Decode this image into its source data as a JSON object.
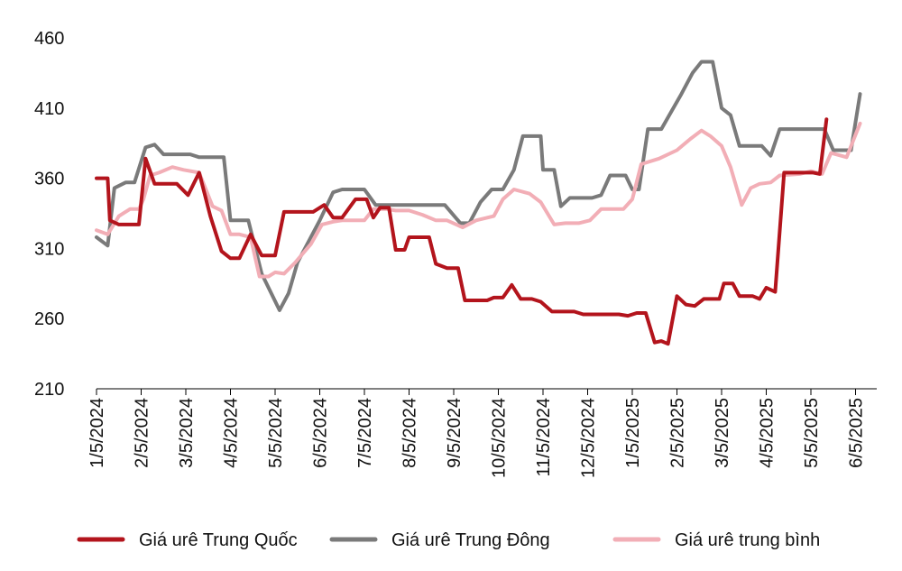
{
  "chart_data": {
    "type": "line",
    "title": "",
    "xlabel": "",
    "ylabel": "",
    "ylim": [
      210,
      460
    ],
    "y_ticks": [
      210,
      260,
      310,
      360,
      410,
      460
    ],
    "x_tick_labels": [
      "1/5/2024",
      "2/5/2024",
      "3/5/2024",
      "4/5/2024",
      "5/5/2024",
      "6/5/2024",
      "7/5/2024",
      "8/5/2024",
      "9/5/2024",
      "10/5/2024",
      "11/5/2024",
      "12/5/2024",
      "1/5/2025",
      "2/5/2025",
      "3/5/2025",
      "4/5/2025",
      "5/5/2025",
      "6/5/2025"
    ],
    "grid": false,
    "legend_position": "bottom",
    "series": [
      {
        "name": "Giá urê Trung Quốc",
        "color": "#b3141c",
        "points": [
          [
            0,
            360
          ],
          [
            0.25,
            360
          ],
          [
            0.3,
            330
          ],
          [
            0.5,
            327
          ],
          [
            0.95,
            327
          ],
          [
            1.1,
            374
          ],
          [
            1.3,
            356
          ],
          [
            1.8,
            356
          ],
          [
            2.05,
            348
          ],
          [
            2.3,
            364
          ],
          [
            2.55,
            333
          ],
          [
            2.8,
            308
          ],
          [
            3.0,
            303
          ],
          [
            3.2,
            303
          ],
          [
            3.45,
            320
          ],
          [
            3.7,
            305
          ],
          [
            4.0,
            305
          ],
          [
            4.2,
            336
          ],
          [
            4.85,
            336
          ],
          [
            5.1,
            341
          ],
          [
            5.3,
            332
          ],
          [
            5.5,
            332
          ],
          [
            5.8,
            345
          ],
          [
            6.05,
            345
          ],
          [
            6.2,
            332
          ],
          [
            6.35,
            339
          ],
          [
            6.55,
            339
          ],
          [
            6.7,
            309
          ],
          [
            6.9,
            309
          ],
          [
            7.0,
            318
          ],
          [
            7.45,
            318
          ],
          [
            7.6,
            299
          ],
          [
            7.85,
            296
          ],
          [
            8.1,
            296
          ],
          [
            8.25,
            273
          ],
          [
            8.75,
            273
          ],
          [
            8.9,
            275
          ],
          [
            9.1,
            275
          ],
          [
            9.3,
            284
          ],
          [
            9.5,
            274
          ],
          [
            9.75,
            274
          ],
          [
            9.95,
            272
          ],
          [
            10.2,
            265
          ],
          [
            10.7,
            265
          ],
          [
            10.9,
            263
          ],
          [
            11.7,
            263
          ],
          [
            11.9,
            262
          ],
          [
            12.1,
            264
          ],
          [
            12.3,
            264
          ],
          [
            12.5,
            243
          ],
          [
            12.65,
            244
          ],
          [
            12.8,
            242
          ],
          [
            13.0,
            276
          ],
          [
            13.2,
            270
          ],
          [
            13.4,
            269
          ],
          [
            13.6,
            274
          ],
          [
            13.95,
            274
          ],
          [
            14.05,
            285
          ],
          [
            14.25,
            285
          ],
          [
            14.4,
            276
          ],
          [
            14.7,
            276
          ],
          [
            14.85,
            274
          ],
          [
            15.0,
            282
          ],
          [
            15.2,
            279
          ],
          [
            15.4,
            364
          ],
          [
            15.95,
            364
          ],
          [
            16.05,
            364
          ],
          [
            16.2,
            363
          ],
          [
            16.35,
            402
          ]
        ]
      },
      {
        "name": "Giá urê Trung Đông",
        "color": "#7a7a7a",
        "points": [
          [
            0,
            318
          ],
          [
            0.25,
            312
          ],
          [
            0.4,
            353
          ],
          [
            0.65,
            357
          ],
          [
            0.85,
            357
          ],
          [
            1.1,
            382
          ],
          [
            1.3,
            384
          ],
          [
            1.5,
            377
          ],
          [
            2.1,
            377
          ],
          [
            2.3,
            375
          ],
          [
            2.85,
            375
          ],
          [
            3.0,
            330
          ],
          [
            3.4,
            330
          ],
          [
            3.7,
            292
          ],
          [
            4.1,
            266
          ],
          [
            4.3,
            278
          ],
          [
            4.5,
            300
          ],
          [
            4.8,
            318
          ],
          [
            5.0,
            330
          ],
          [
            5.3,
            350
          ],
          [
            5.5,
            352
          ],
          [
            6.0,
            352
          ],
          [
            6.25,
            341
          ],
          [
            7.8,
            341
          ],
          [
            8.15,
            328
          ],
          [
            8.35,
            328
          ],
          [
            8.6,
            343
          ],
          [
            8.85,
            352
          ],
          [
            9.1,
            352
          ],
          [
            9.35,
            366
          ],
          [
            9.55,
            390
          ],
          [
            9.95,
            390
          ],
          [
            10.0,
            366
          ],
          [
            10.25,
            366
          ],
          [
            10.4,
            340
          ],
          [
            10.6,
            346
          ],
          [
            11.1,
            346
          ],
          [
            11.3,
            348
          ],
          [
            11.5,
            362
          ],
          [
            11.85,
            362
          ],
          [
            12.0,
            352
          ],
          [
            12.15,
            352
          ],
          [
            12.35,
            395
          ],
          [
            12.65,
            395
          ],
          [
            13.1,
            420
          ],
          [
            13.35,
            435
          ],
          [
            13.55,
            443
          ],
          [
            13.8,
            443
          ],
          [
            14.0,
            410
          ],
          [
            14.2,
            405
          ],
          [
            14.4,
            383
          ],
          [
            14.9,
            383
          ],
          [
            15.1,
            376
          ],
          [
            15.3,
            395
          ],
          [
            16.3,
            395
          ],
          [
            16.5,
            380
          ],
          [
            16.9,
            380
          ],
          [
            17.1,
            420
          ]
        ]
      },
      {
        "name": "Giá urê trung bình",
        "color": "#f2aeb6",
        "points": [
          [
            0,
            323
          ],
          [
            0.25,
            320
          ],
          [
            0.5,
            333
          ],
          [
            0.75,
            338
          ],
          [
            0.95,
            338
          ],
          [
            1.05,
            345
          ],
          [
            1.2,
            362
          ],
          [
            1.4,
            364
          ],
          [
            1.7,
            368
          ],
          [
            1.95,
            366
          ],
          [
            2.3,
            364
          ],
          [
            2.6,
            340
          ],
          [
            2.8,
            337
          ],
          [
            3.0,
            320
          ],
          [
            3.2,
            320
          ],
          [
            3.45,
            318
          ],
          [
            3.65,
            290
          ],
          [
            3.85,
            290
          ],
          [
            4.0,
            293
          ],
          [
            4.2,
            292
          ],
          [
            4.45,
            300
          ],
          [
            4.8,
            313
          ],
          [
            5.05,
            327
          ],
          [
            5.3,
            329
          ],
          [
            5.5,
            330
          ],
          [
            6.0,
            330
          ],
          [
            6.2,
            338
          ],
          [
            6.5,
            338
          ],
          [
            6.7,
            337
          ],
          [
            7.0,
            337
          ],
          [
            7.3,
            334
          ],
          [
            7.6,
            330
          ],
          [
            7.85,
            330
          ],
          [
            8.2,
            325
          ],
          [
            8.5,
            330
          ],
          [
            8.9,
            333
          ],
          [
            9.1,
            345
          ],
          [
            9.35,
            352
          ],
          [
            9.7,
            349
          ],
          [
            9.95,
            343
          ],
          [
            10.25,
            327
          ],
          [
            10.5,
            328
          ],
          [
            10.8,
            328
          ],
          [
            11.05,
            330
          ],
          [
            11.3,
            338
          ],
          [
            11.8,
            338
          ],
          [
            12.0,
            345
          ],
          [
            12.2,
            370
          ],
          [
            12.6,
            374
          ],
          [
            13.0,
            380
          ],
          [
            13.3,
            388
          ],
          [
            13.55,
            394
          ],
          [
            13.75,
            390
          ],
          [
            14.0,
            383
          ],
          [
            14.2,
            368
          ],
          [
            14.45,
            341
          ],
          [
            14.65,
            353
          ],
          [
            14.85,
            356
          ],
          [
            15.1,
            357
          ],
          [
            15.3,
            362
          ],
          [
            15.75,
            363
          ],
          [
            16.0,
            365
          ],
          [
            16.25,
            363
          ],
          [
            16.45,
            378
          ],
          [
            16.8,
            375
          ],
          [
            17.1,
            399
          ]
        ]
      }
    ]
  }
}
